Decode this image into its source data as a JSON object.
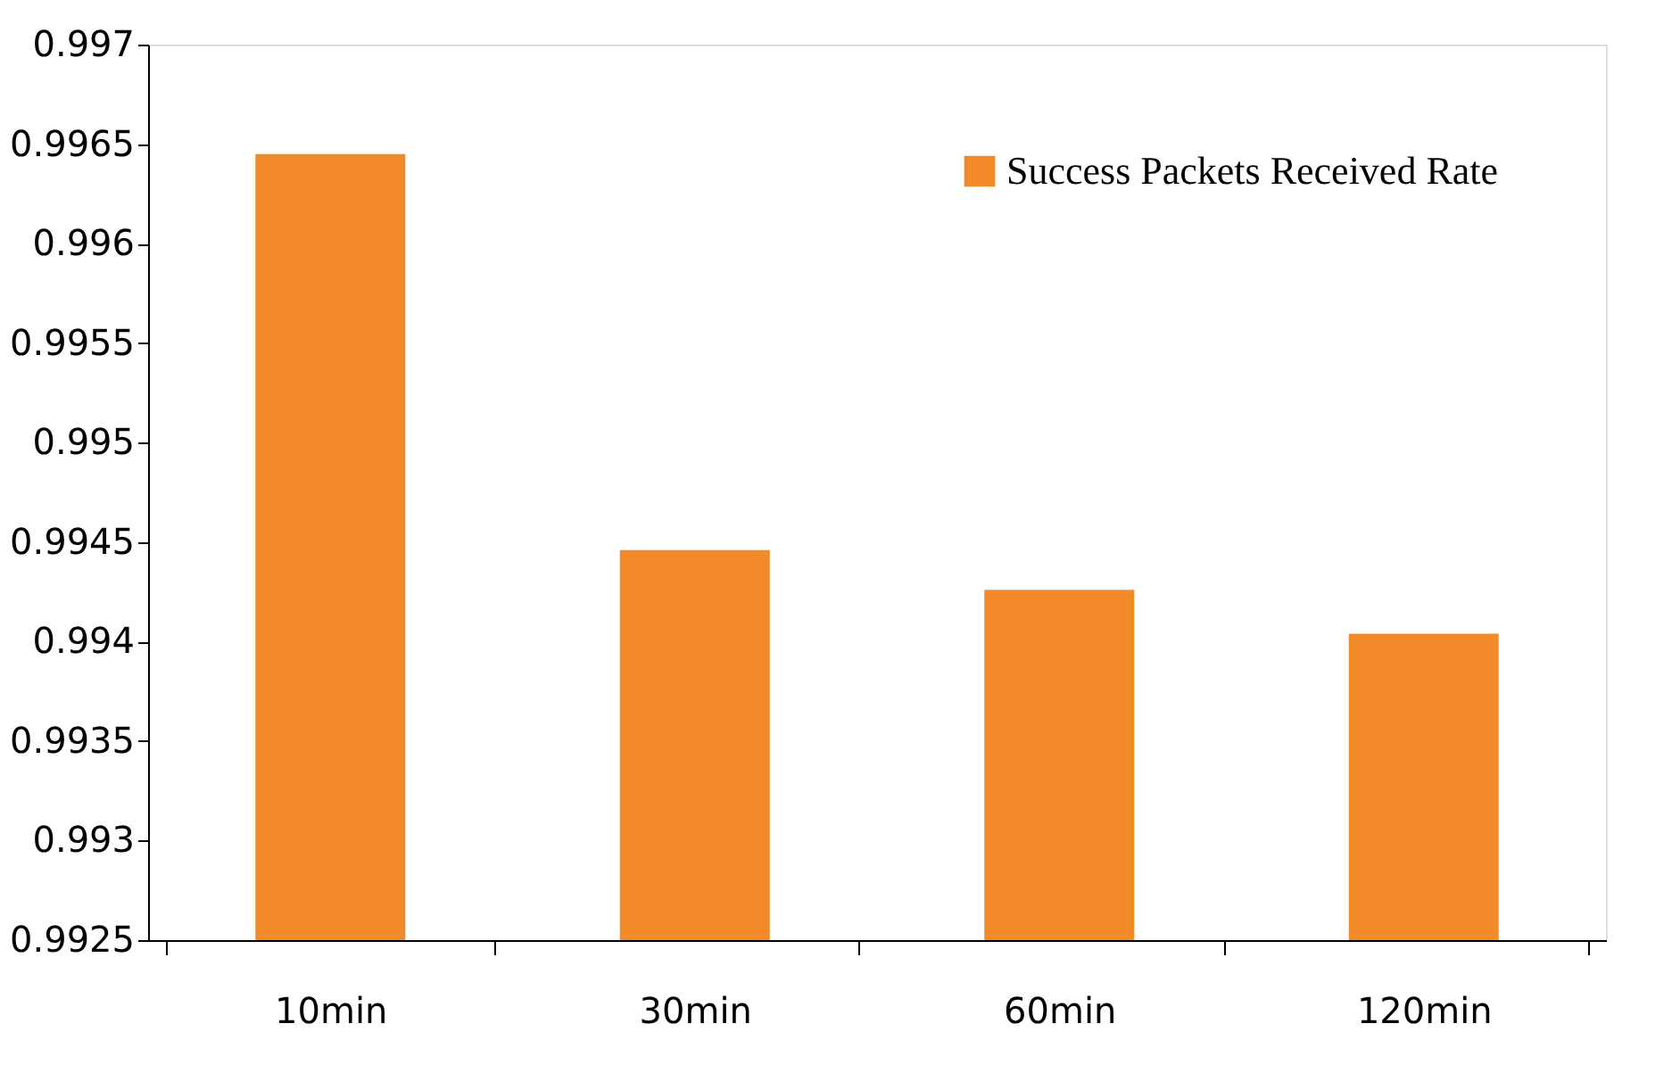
{
  "chart_data": {
    "type": "bar",
    "categories": [
      "10min",
      "30min",
      "60min",
      "120min"
    ],
    "series": [
      {
        "name": "Success Packets Received Rate",
        "color": "#f28a2a",
        "values": [
          0.99645,
          0.99446,
          0.99426,
          0.99404
        ]
      }
    ],
    "ylim": [
      0.9925,
      0.997
    ],
    "yticks": [
      0.9925,
      0.993,
      0.9935,
      0.994,
      0.9945,
      0.995,
      0.9955,
      0.996,
      0.9965,
      0.997
    ],
    "grid": false,
    "legend": "top right"
  }
}
